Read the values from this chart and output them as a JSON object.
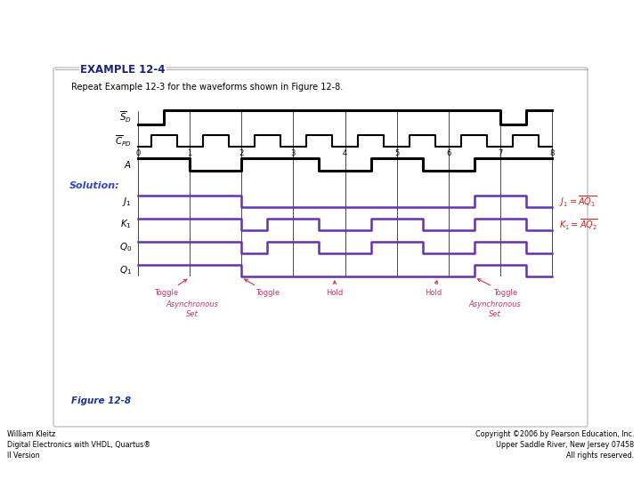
{
  "title": "EXAMPLE 12-4",
  "subtitle": "Repeat Example 12-3 for the waveforms shown in Figure 12-8.",
  "figure_label": "Figure 12-8",
  "solution_label": "Solution:",
  "bg_color": "#ffffff",
  "box_color": "#b0b0b0",
  "black_wave_color": "#000000",
  "purple_wave_color": "#6633aa",
  "pink_annotation_color": "#cc3366",
  "title_color": "#1a237e",
  "figure_color": "#1a3399",
  "solution_color": "#3344cc",
  "right_label_color": "#cc2222",
  "clock_labels": [
    "0",
    "1",
    "2",
    "3",
    "4",
    "5",
    "6",
    "7",
    "8"
  ],
  "left_author": "William Kleitz\nDigital Electronics with VHDL, Quartus®\nII Version",
  "right_copyright": "Copyright ©2006 by Pearson Education, Inc.\nUpper Saddle River, New Jersey 07458\nAll rights reserved."
}
